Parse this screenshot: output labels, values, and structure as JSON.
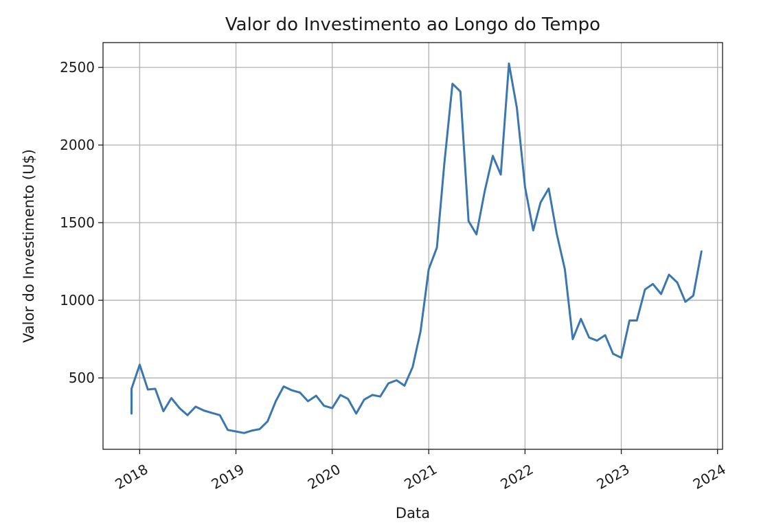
{
  "chart_data": {
    "type": "line",
    "title": "Valor do Investimento ao Longo do Tempo",
    "xlabel": "Data",
    "ylabel": "Valor do Investimento (U$)",
    "x_axis_type": "date",
    "xlim": [
      "2017-08-15",
      "2024-01-20"
    ],
    "ylim": [
      40,
      2660
    ],
    "x_ticks": [
      {
        "date": "2018-01-01",
        "label": "2018"
      },
      {
        "date": "2019-01-01",
        "label": "2019"
      },
      {
        "date": "2020-01-01",
        "label": "2020"
      },
      {
        "date": "2021-01-01",
        "label": "2021"
      },
      {
        "date": "2022-01-01",
        "label": "2022"
      },
      {
        "date": "2023-01-01",
        "label": "2023"
      },
      {
        "date": "2024-01-01",
        "label": "2024"
      }
    ],
    "y_ticks": [
      {
        "value": 500,
        "label": "500"
      },
      {
        "value": 1000,
        "label": "1000"
      },
      {
        "value": 1500,
        "label": "1500"
      },
      {
        "value": 2000,
        "label": "2000"
      },
      {
        "value": 2500,
        "label": "2500"
      }
    ],
    "grid": true,
    "line_color": "#3a76b0",
    "series": [
      {
        "x": [
          "2017-12-01",
          "2017-12-01",
          "2018-01-01",
          "2018-02-01",
          "2018-03-01",
          "2018-04-01",
          "2018-05-01",
          "2018-06-01",
          "2018-07-01",
          "2018-08-01",
          "2018-09-01",
          "2018-10-01",
          "2018-11-01",
          "2018-12-01",
          "2019-01-01",
          "2019-02-01",
          "2019-03-01",
          "2019-04-01",
          "2019-05-01",
          "2019-06-01",
          "2019-07-01",
          "2019-08-01",
          "2019-09-01",
          "2019-10-01",
          "2019-11-01",
          "2019-12-01",
          "2020-01-01",
          "2020-02-01",
          "2020-03-01",
          "2020-04-01",
          "2020-05-01",
          "2020-06-01",
          "2020-07-01",
          "2020-08-01",
          "2020-09-01",
          "2020-10-01",
          "2020-11-01",
          "2020-12-01",
          "2021-01-01",
          "2021-02-01",
          "2021-03-01",
          "2021-04-01",
          "2021-05-01",
          "2021-06-01",
          "2021-07-01",
          "2021-08-01",
          "2021-09-01",
          "2021-10-01",
          "2021-11-01",
          "2021-12-01",
          "2022-01-01",
          "2022-02-01",
          "2022-03-01",
          "2022-04-01",
          "2022-05-01",
          "2022-06-01",
          "2022-07-01",
          "2022-08-01",
          "2022-09-01",
          "2022-10-01",
          "2022-11-01",
          "2022-12-01",
          "2023-01-01",
          "2023-02-01",
          "2023-03-01",
          "2023-04-01",
          "2023-05-01",
          "2023-06-01",
          "2023-07-01",
          "2023-08-01",
          "2023-09-01",
          "2023-10-01",
          "2023-11-01"
        ],
        "values": [
          270,
          430,
          585,
          425,
          430,
          285,
          370,
          305,
          260,
          315,
          290,
          275,
          260,
          165,
          155,
          145,
          160,
          170,
          220,
          350,
          445,
          420,
          405,
          350,
          385,
          320,
          305,
          390,
          365,
          270,
          360,
          390,
          380,
          465,
          485,
          450,
          570,
          800,
          1200,
          1340,
          1880,
          2395,
          2345,
          1510,
          1425,
          1700,
          1930,
          1810,
          2525,
          2240,
          1730,
          1450,
          1630,
          1720,
          1430,
          1200,
          750,
          880,
          760,
          740,
          775,
          655,
          630,
          870,
          870,
          1070,
          1105,
          1040,
          1165,
          1115,
          990,
          1030,
          1315
        ]
      }
    ]
  }
}
